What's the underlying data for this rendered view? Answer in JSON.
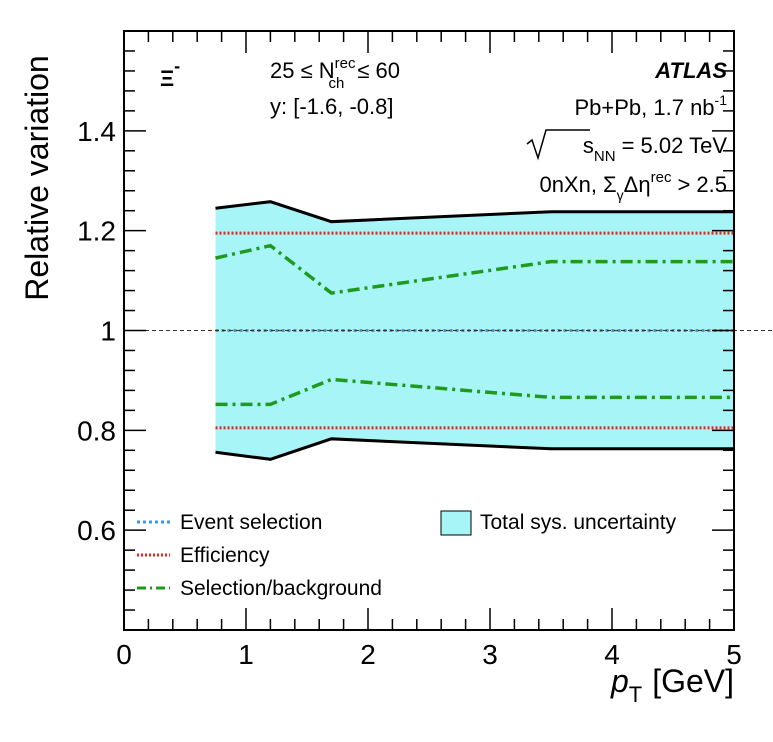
{
  "chart_data": {
    "type": "area",
    "title": "",
    "particle": "Ξ",
    "particle_charge": "-",
    "xlabel": {
      "symbol": "p",
      "sub": "T",
      "unit": "[GeV]"
    },
    "ylabel": "Relative variation",
    "xlim": [
      0,
      5
    ],
    "ylim": [
      0.4,
      1.6
    ],
    "x_ticks": [
      0,
      1,
      2,
      3,
      4,
      5
    ],
    "x_tick_labels": [
      "0",
      "1",
      "2",
      "3",
      "4",
      "5"
    ],
    "y_ticks": [
      0.6,
      0.8,
      1.0,
      1.2,
      1.4
    ],
    "y_tick_labels": [
      "0.6",
      "0.8",
      "1",
      "1.2",
      "1.4"
    ],
    "reference_line": 1.0,
    "x": [
      0.75,
      1.2,
      1.7,
      3.5,
      5.0
    ],
    "series": [
      {
        "name": "Total sys. uncertainty",
        "style": "band",
        "color": "#a8f5f8",
        "edge_color": "#000000",
        "upper": [
          1.245,
          1.258,
          1.218,
          1.238,
          1.238
        ],
        "lower": [
          0.756,
          0.742,
          0.783,
          0.763,
          0.763
        ]
      },
      {
        "name": "Event selection",
        "style": "dotted",
        "color": "#3a9ae6",
        "upper": [
          1.0,
          1.0,
          1.0,
          1.0,
          1.0
        ],
        "lower": [
          1.0,
          1.0,
          1.0,
          1.0,
          1.0
        ]
      },
      {
        "name": "Efficiency",
        "style": "dotted",
        "color": "#e8261f",
        "upper": [
          1.195,
          1.195,
          1.195,
          1.195,
          1.195
        ],
        "lower": [
          0.805,
          0.805,
          0.805,
          0.805,
          0.805
        ]
      },
      {
        "name": "Selection/background",
        "style": "dashdot",
        "color": "#1f9a1f",
        "upper": [
          1.145,
          1.17,
          1.075,
          1.138,
          1.138
        ],
        "lower": [
          0.852,
          0.852,
          0.902,
          0.866,
          0.866
        ]
      }
    ],
    "annotations": {
      "nch_prefix": "25 ≤ N",
      "nch_sup": "rec",
      "nch_sub": "ch",
      "nch_suffix": "≤ 60",
      "rapidity": "y: [-1.6, -0.8]",
      "experiment": "ATLAS",
      "system_prefix": "Pb+Pb, 1.7 nb",
      "system_sup": "-1",
      "energy_prefix": "s",
      "energy_sub": "NN",
      "energy_suffix": "= 5.02 TeV",
      "selection_prefix": "0nXn, Σ",
      "selection_sub": "γ",
      "selection_mid": "Δη",
      "selection_sup": "rec",
      "selection_suffix": "> 2.5"
    },
    "legend_left": [
      "Event selection",
      "Efficiency",
      "Selection/background"
    ],
    "legend_right": [
      "Total sys. uncertainty"
    ]
  }
}
